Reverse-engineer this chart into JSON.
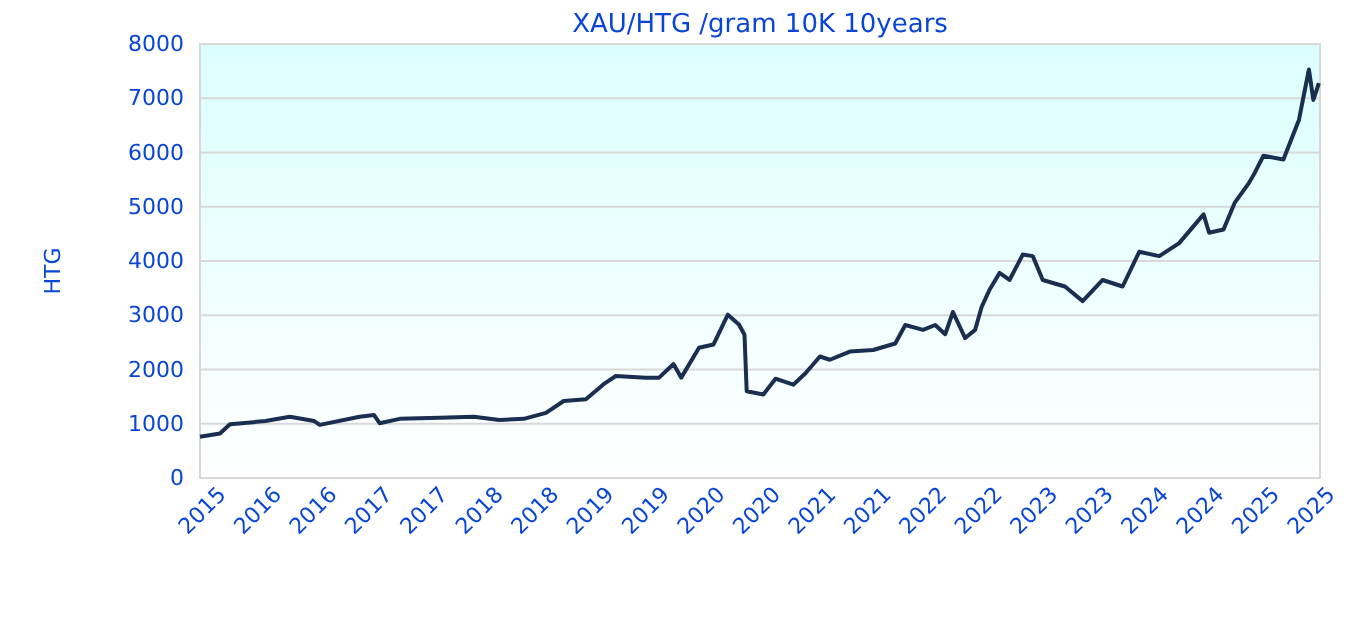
{
  "chart_data": {
    "type": "line",
    "title": "XAU/HTG /gram 10K 10years",
    "ylabel": "HTG",
    "x": [
      2015.5,
      2015.68,
      2015.77,
      2015.93,
      2016.09,
      2016.31,
      2016.53,
      2016.58,
      2016.94,
      2017.07,
      2017.12,
      2017.3,
      2017.66,
      2017.97,
      2018.2,
      2018.42,
      2018.62,
      2018.78,
      2018.98,
      2019.14,
      2019.25,
      2019.52,
      2019.64,
      2019.77,
      2019.84,
      2020.0,
      2020.13,
      2020.26,
      2020.36,
      2020.41,
      2020.43,
      2020.58,
      2020.69,
      2020.85,
      2020.96,
      2021.09,
      2021.18,
      2021.36,
      2021.57,
      2021.77,
      2021.86,
      2022.02,
      2022.13,
      2022.22,
      2022.29,
      2022.4,
      2022.49,
      2022.55,
      2022.62,
      2022.71,
      2022.8,
      2022.92,
      2023.01,
      2023.1,
      2023.3,
      2023.46,
      2023.64,
      2023.82,
      2023.97,
      2024.15,
      2024.33,
      2024.55,
      2024.6,
      2024.73,
      2024.83,
      2024.96,
      2025.01,
      2025.09,
      2025.27,
      2025.41,
      2025.5,
      2025.54,
      2025.59
    ],
    "series": [
      {
        "color": "#1a2e50",
        "values": [
          760,
          820,
          990,
          1020,
          1050,
          1130,
          1050,
          980,
          1130,
          1160,
          1010,
          1090,
          1110,
          1130,
          1070,
          1090,
          1200,
          1420,
          1450,
          1730,
          1880,
          1850,
          1850,
          2100,
          1850,
          2400,
          2460,
          3010,
          2830,
          2640,
          1600,
          1540,
          1830,
          1720,
          1930,
          2240,
          2180,
          2330,
          2360,
          2480,
          2820,
          2730,
          2820,
          2650,
          3060,
          2580,
          2730,
          3160,
          3470,
          3780,
          3650,
          4120,
          4090,
          3650,
          3530,
          3260,
          3650,
          3530,
          4170,
          4090,
          4330,
          4860,
          4520,
          4580,
          5070,
          5440,
          5620,
          5940,
          5870,
          6600,
          7530,
          6970,
          7280
        ]
      }
    ],
    "xlim": [
      2015.5,
      2025.6
    ],
    "xticks": [
      {
        "value": 2015.5,
        "label": "2015"
      },
      {
        "value": 2016,
        "label": "2016"
      },
      {
        "value": 2016.5,
        "label": "2016"
      },
      {
        "value": 2017,
        "label": "2017"
      },
      {
        "value": 2017.5,
        "label": "2017"
      },
      {
        "value": 2018,
        "label": "2018"
      },
      {
        "value": 2018.5,
        "label": "2018"
      },
      {
        "value": 2019,
        "label": "2019"
      },
      {
        "value": 2019.5,
        "label": "2019"
      },
      {
        "value": 2020,
        "label": "2020"
      },
      {
        "value": 2020.5,
        "label": "2020"
      },
      {
        "value": 2021,
        "label": "2021"
      },
      {
        "value": 2021.5,
        "label": "2021"
      },
      {
        "value": 2022,
        "label": "2022"
      },
      {
        "value": 2022.5,
        "label": "2022"
      },
      {
        "value": 2023,
        "label": "2023"
      },
      {
        "value": 2023.5,
        "label": "2023"
      },
      {
        "value": 2024,
        "label": "2024"
      },
      {
        "value": 2024.5,
        "label": "2024"
      },
      {
        "value": 2025,
        "label": "2025"
      },
      {
        "value": 2025.5,
        "label": "2025"
      }
    ],
    "ylim": [
      0,
      8000
    ],
    "yticks": [
      0,
      1000,
      2000,
      3000,
      4000,
      5000,
      6000,
      7000,
      8000
    ],
    "grid": "y",
    "marker": "none",
    "line_style": "solid"
  }
}
